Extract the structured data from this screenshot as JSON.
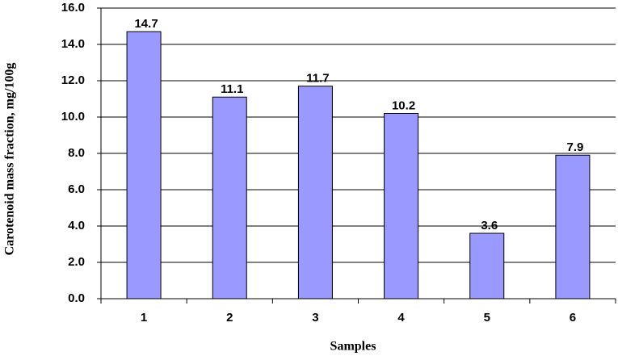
{
  "chart_data": {
    "type": "bar",
    "x_label": "Samples",
    "y_label": "Carotenoid mass fraction, mg/100g",
    "categories": [
      "1",
      "2",
      "3",
      "4",
      "5",
      "6"
    ],
    "values": [
      14.7,
      11.1,
      11.7,
      10.2,
      3.6,
      7.9
    ],
    "color": "#9999ff",
    "ylim": [
      0,
      16
    ],
    "yticks": [
      {
        "value": 0,
        "label": "0.0"
      },
      {
        "value": 2,
        "label": "2.0"
      },
      {
        "value": 4,
        "label": "4.0"
      },
      {
        "value": 6,
        "label": "6.0"
      },
      {
        "value": 8,
        "label": "8.0"
      },
      {
        "value": 10,
        "label": "10.0"
      },
      {
        "value": 12,
        "label": "12.0"
      },
      {
        "value": 14,
        "label": "14.0"
      },
      {
        "value": 16,
        "label": "16.0"
      }
    ],
    "grid": true
  }
}
